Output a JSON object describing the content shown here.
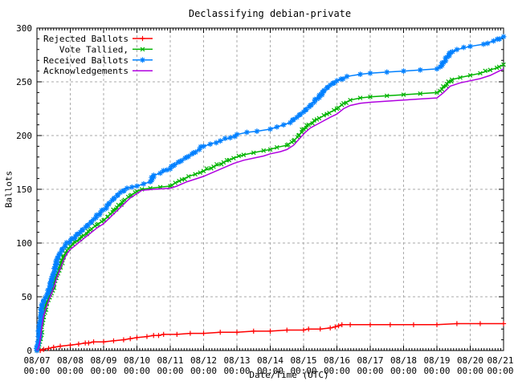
{
  "chart_data": {
    "type": "line",
    "title": "Declassifying debian-private",
    "xlabel": "Date/Time (UTC)",
    "ylabel": "Ballots",
    "ylim": [
      0,
      300
    ],
    "y_ticks": [
      0,
      50,
      100,
      150,
      200,
      250,
      300
    ],
    "x_ticks": [
      {
        "date": "08/07",
        "time": "00:00"
      },
      {
        "date": "08/08",
        "time": "00:00"
      },
      {
        "date": "08/09",
        "time": "00:00"
      },
      {
        "date": "08/10",
        "time": "00:00"
      },
      {
        "date": "08/11",
        "time": "00:00"
      },
      {
        "date": "08/12",
        "time": "00:00"
      },
      {
        "date": "08/13",
        "time": "00:00"
      },
      {
        "date": "08/14",
        "time": "00:00"
      },
      {
        "date": "08/15",
        "time": "00:00"
      },
      {
        "date": "08/16",
        "time": "00:00"
      },
      {
        "date": "08/17",
        "time": "00:00"
      },
      {
        "date": "08/18",
        "time": "00:00"
      },
      {
        "date": "08/19",
        "time": "00:00"
      },
      {
        "date": "08/20",
        "time": "00:00"
      },
      {
        "date": "08/21",
        "time": "00:00"
      }
    ],
    "x_range_days": [
      0,
      14
    ],
    "grid": true,
    "legend_position": "top-left",
    "background": "#ffffff",
    "border_color": "#000000",
    "grid_color": "#aaaaaa",
    "series": [
      {
        "name": "Rejected Ballots",
        "color": "#ff0000",
        "marker": "plus",
        "marker_value_interval": 1.0,
        "points": [
          [
            0,
            0
          ],
          [
            0.1,
            0
          ],
          [
            0.2,
            1
          ],
          [
            0.35,
            2
          ],
          [
            0.5,
            3
          ],
          [
            0.7,
            4
          ],
          [
            1.0,
            5
          ],
          [
            1.25,
            6
          ],
          [
            1.45,
            7
          ],
          [
            1.55,
            7
          ],
          [
            1.7,
            8
          ],
          [
            2.0,
            8
          ],
          [
            2.3,
            9
          ],
          [
            2.6,
            10
          ],
          [
            2.8,
            11
          ],
          [
            3.0,
            12
          ],
          [
            3.3,
            13
          ],
          [
            3.5,
            14
          ],
          [
            3.65,
            14
          ],
          [
            3.8,
            15
          ],
          [
            4.2,
            15
          ],
          [
            4.6,
            16
          ],
          [
            5.0,
            16
          ],
          [
            5.5,
            17
          ],
          [
            6.0,
            17
          ],
          [
            6.5,
            18
          ],
          [
            7.0,
            18
          ],
          [
            7.5,
            19
          ],
          [
            8.0,
            19
          ],
          [
            8.15,
            20
          ],
          [
            8.5,
            20
          ],
          [
            8.8,
            21
          ],
          [
            8.95,
            22
          ],
          [
            9.05,
            23
          ],
          [
            9.15,
            24
          ],
          [
            9.4,
            24
          ],
          [
            10.0,
            24
          ],
          [
            10.6,
            24
          ],
          [
            11.3,
            24
          ],
          [
            12.0,
            24
          ],
          [
            12.6,
            25
          ],
          [
            13.3,
            25
          ],
          [
            14.0,
            25
          ]
        ]
      },
      {
        "name": "Vote Tallied,",
        "color": "#00b400",
        "marker": "x",
        "marker_value_interval": 1.3,
        "points": [
          [
            0,
            0
          ],
          [
            0.05,
            4
          ],
          [
            0.1,
            12
          ],
          [
            0.15,
            24
          ],
          [
            0.2,
            34
          ],
          [
            0.3,
            44
          ],
          [
            0.4,
            52
          ],
          [
            0.5,
            60
          ],
          [
            0.6,
            70
          ],
          [
            0.7,
            79
          ],
          [
            0.8,
            87
          ],
          [
            0.9,
            93
          ],
          [
            1.0,
            97
          ],
          [
            1.2,
            102
          ],
          [
            1.4,
            107
          ],
          [
            1.6,
            112
          ],
          [
            1.8,
            117
          ],
          [
            2.0,
            121
          ],
          [
            2.2,
            127
          ],
          [
            2.4,
            133
          ],
          [
            2.6,
            139
          ],
          [
            2.8,
            144
          ],
          [
            3.0,
            148
          ],
          [
            3.15,
            150
          ],
          [
            3.4,
            151
          ],
          [
            3.7,
            152
          ],
          [
            4.0,
            153
          ],
          [
            4.15,
            156
          ],
          [
            4.35,
            159
          ],
          [
            4.55,
            162
          ],
          [
            4.75,
            164
          ],
          [
            5.0,
            167
          ],
          [
            5.3,
            171
          ],
          [
            5.6,
            175
          ],
          [
            5.9,
            179
          ],
          [
            6.2,
            182
          ],
          [
            6.5,
            184
          ],
          [
            6.8,
            186
          ],
          [
            7.0,
            187
          ],
          [
            7.2,
            189
          ],
          [
            7.5,
            191
          ],
          [
            7.7,
            195
          ],
          [
            7.85,
            200
          ],
          [
            8.0,
            206
          ],
          [
            8.15,
            210
          ],
          [
            8.4,
            215
          ],
          [
            8.7,
            220
          ],
          [
            9.0,
            225
          ],
          [
            9.2,
            230
          ],
          [
            9.4,
            233
          ],
          [
            9.7,
            235
          ],
          [
            10.0,
            236
          ],
          [
            10.5,
            237
          ],
          [
            11.0,
            238
          ],
          [
            11.5,
            239
          ],
          [
            12.0,
            240
          ],
          [
            12.15,
            243
          ],
          [
            12.3,
            248
          ],
          [
            12.45,
            252
          ],
          [
            12.7,
            254
          ],
          [
            13.0,
            256
          ],
          [
            13.3,
            258
          ],
          [
            13.6,
            261
          ],
          [
            13.8,
            263
          ],
          [
            14.0,
            266
          ]
        ]
      },
      {
        "name": "Received Ballots",
        "color": "#0080ff",
        "marker": "star",
        "marker_value_interval": 1.3,
        "points": [
          [
            0,
            0
          ],
          [
            0.04,
            8
          ],
          [
            0.08,
            20
          ],
          [
            0.12,
            33
          ],
          [
            0.16,
            42
          ],
          [
            0.2,
            46
          ],
          [
            0.3,
            52
          ],
          [
            0.38,
            58
          ],
          [
            0.45,
            66
          ],
          [
            0.55,
            78
          ],
          [
            0.65,
            88
          ],
          [
            0.75,
            94
          ],
          [
            0.85,
            98
          ],
          [
            1.0,
            102
          ],
          [
            1.15,
            106
          ],
          [
            1.3,
            110
          ],
          [
            1.5,
            116
          ],
          [
            1.7,
            122
          ],
          [
            1.9,
            128
          ],
          [
            2.0,
            131
          ],
          [
            2.15,
            136
          ],
          [
            2.3,
            141
          ],
          [
            2.5,
            147
          ],
          [
            2.7,
            151
          ],
          [
            2.85,
            152
          ],
          [
            3.0,
            153
          ],
          [
            3.2,
            155
          ],
          [
            3.4,
            157
          ],
          [
            3.5,
            163
          ],
          [
            3.7,
            165
          ],
          [
            3.9,
            168
          ],
          [
            4.1,
            172
          ],
          [
            4.3,
            176
          ],
          [
            4.5,
            180
          ],
          [
            4.7,
            184
          ],
          [
            5.0,
            190
          ],
          [
            5.2,
            192
          ],
          [
            5.5,
            195
          ],
          [
            5.8,
            198
          ],
          [
            6.0,
            201
          ],
          [
            6.3,
            203
          ],
          [
            6.6,
            204
          ],
          [
            7.0,
            206
          ],
          [
            7.2,
            208
          ],
          [
            7.4,
            210
          ],
          [
            7.6,
            212
          ],
          [
            7.8,
            217
          ],
          [
            8.0,
            222
          ],
          [
            8.2,
            228
          ],
          [
            8.4,
            234
          ],
          [
            8.6,
            241
          ],
          [
            8.8,
            247
          ],
          [
            9.0,
            251
          ],
          [
            9.3,
            255
          ],
          [
            9.7,
            257
          ],
          [
            10.0,
            258
          ],
          [
            10.5,
            259
          ],
          [
            11.0,
            260
          ],
          [
            11.5,
            261
          ],
          [
            12.0,
            262
          ],
          [
            12.1,
            264
          ],
          [
            12.2,
            268
          ],
          [
            12.3,
            273
          ],
          [
            12.4,
            277
          ],
          [
            12.6,
            280
          ],
          [
            13.0,
            283
          ],
          [
            13.4,
            285
          ],
          [
            13.7,
            288
          ],
          [
            14.0,
            292
          ]
        ]
      },
      {
        "name": "Acknowledgements",
        "color": "#b000e0",
        "marker": "none",
        "marker_value_interval": 0,
        "points": [
          [
            0,
            0
          ],
          [
            0.05,
            3
          ],
          [
            0.1,
            10
          ],
          [
            0.15,
            22
          ],
          [
            0.2,
            32
          ],
          [
            0.3,
            42
          ],
          [
            0.4,
            50
          ],
          [
            0.5,
            58
          ],
          [
            0.6,
            68
          ],
          [
            0.7,
            76
          ],
          [
            0.8,
            84
          ],
          [
            0.9,
            90
          ],
          [
            1.0,
            94
          ],
          [
            1.2,
            99
          ],
          [
            1.4,
            104
          ],
          [
            1.6,
            109
          ],
          [
            1.8,
            114
          ],
          [
            2.0,
            118
          ],
          [
            2.2,
            124
          ],
          [
            2.4,
            130
          ],
          [
            2.6,
            136
          ],
          [
            2.8,
            142
          ],
          [
            3.0,
            146
          ],
          [
            3.15,
            149
          ],
          [
            3.5,
            150
          ],
          [
            4.0,
            151
          ],
          [
            4.2,
            153
          ],
          [
            4.5,
            157
          ],
          [
            4.8,
            160
          ],
          [
            5.0,
            162
          ],
          [
            5.3,
            166
          ],
          [
            5.6,
            170
          ],
          [
            5.9,
            174
          ],
          [
            6.2,
            177
          ],
          [
            6.5,
            179
          ],
          [
            6.8,
            181
          ],
          [
            7.0,
            183
          ],
          [
            7.3,
            185
          ],
          [
            7.5,
            187
          ],
          [
            7.7,
            191
          ],
          [
            7.9,
            198
          ],
          [
            8.05,
            203
          ],
          [
            8.2,
            207
          ],
          [
            8.5,
            212
          ],
          [
            8.8,
            217
          ],
          [
            9.0,
            220
          ],
          [
            9.2,
            225
          ],
          [
            9.4,
            228
          ],
          [
            9.7,
            230
          ],
          [
            10.0,
            231
          ],
          [
            10.5,
            232
          ],
          [
            11.0,
            233
          ],
          [
            11.5,
            234
          ],
          [
            12.0,
            235
          ],
          [
            12.2,
            240
          ],
          [
            12.4,
            246
          ],
          [
            12.7,
            249
          ],
          [
            13.0,
            251
          ],
          [
            13.3,
            253
          ],
          [
            13.6,
            256
          ],
          [
            13.8,
            259
          ],
          [
            14.0,
            262
          ]
        ]
      }
    ]
  }
}
